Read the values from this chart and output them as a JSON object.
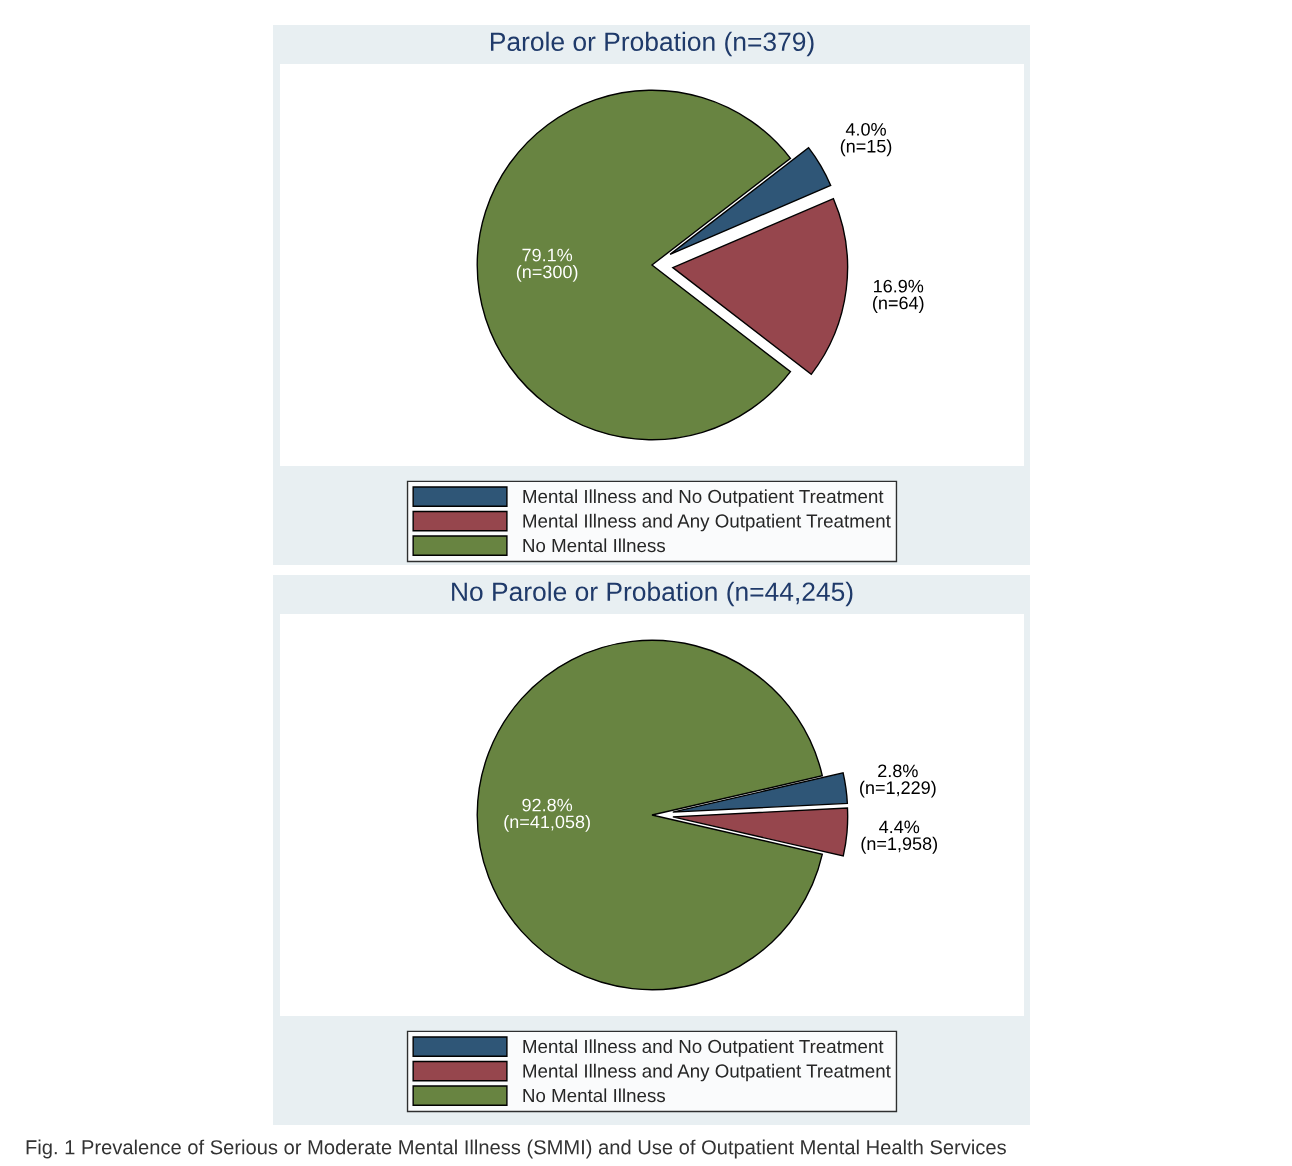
{
  "chart_data": [
    {
      "type": "pie",
      "title": "Parole or Probation (n=379)",
      "categories": [
        "Mental Illness and No Outpatient Treatment",
        "Mental Illness and Any Outpatient Treatment",
        "No Mental Illness"
      ],
      "values": [
        4.0,
        16.9,
        79.1
      ],
      "colors": [
        "#2f5677",
        "#96464d",
        "#688441"
      ],
      "value_labels": [
        "4.0%\n(n=15)",
        "16.9%\n(n=64)",
        "79.1%\n(n=300)"
      ],
      "legend": "bottom"
    },
    {
      "type": "pie",
      "title": "No Parole or Probation (n=44,245)",
      "categories": [
        "Mental Illness and No Outpatient Treatment",
        "Mental Illness and Any Outpatient Treatment",
        "No Mental Illness"
      ],
      "values": [
        2.8,
        4.4,
        92.8
      ],
      "colors": [
        "#2f5677",
        "#96464d",
        "#688441"
      ],
      "value_labels": [
        "2.8%\n(n=1,229)",
        "4.4%\n(n=1,958)",
        "92.8%\n(n=41,058)"
      ],
      "legend": "bottom",
      "annotations": [
        "Fig. 1 Prevalence of Serious or Moderate Mental Illness (SMMI) and Use of Outpatient Mental Health Services"
      ]
    }
  ]
}
